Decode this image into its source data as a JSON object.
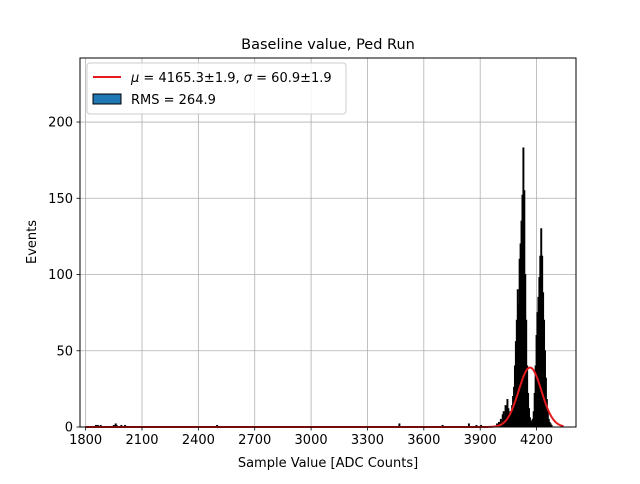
{
  "chart_data": {
    "type": "histogram",
    "title": "Baseline value, Ped Run",
    "xlabel": "Sample Value [ADC Counts]",
    "ylabel": "Events",
    "xlim": [
      1770,
      4410
    ],
    "ylim": [
      0,
      242
    ],
    "xticks": [
      1800,
      2100,
      2400,
      2700,
      3000,
      3300,
      3600,
      3900,
      4200
    ],
    "yticks": [
      0,
      50,
      100,
      150,
      200
    ],
    "grid": true,
    "legend_position": "top-left",
    "legend": [
      {
        "kind": "line",
        "math_mu": "μ",
        "mid": " = 4165.3±1.9, ",
        "math_sigma": "σ",
        "tail": " = 60.9±1.9"
      },
      {
        "kind": "patch",
        "label": "RMS = 264.9"
      }
    ],
    "fit": {
      "name": "gaussian fit",
      "mu": 4165.3,
      "sigma": 60.9,
      "amplitude": 39,
      "color": "#e41a1c",
      "x_range": [
        3995,
        4345
      ]
    },
    "histogram": {
      "color": "#1f77b4",
      "edgecolor": "#000000",
      "bins": [
        [
          1855,
          1
        ],
        [
          1865,
          1
        ],
        [
          1880,
          1
        ],
        [
          1950,
          1
        ],
        [
          1960,
          2
        ],
        [
          1965,
          1
        ],
        [
          1990,
          1
        ],
        [
          2010,
          1
        ],
        [
          2500,
          1
        ],
        [
          3470,
          2
        ],
        [
          3700,
          1
        ],
        [
          3840,
          2
        ],
        [
          3880,
          1
        ],
        [
          3905,
          1
        ],
        [
          3990,
          2
        ],
        [
          4000,
          3
        ],
        [
          4010,
          5
        ],
        [
          4020,
          8
        ],
        [
          4025,
          10
        ],
        [
          4030,
          6
        ],
        [
          4035,
          14
        ],
        [
          4040,
          9
        ],
        [
          4045,
          18
        ],
        [
          4050,
          12
        ],
        [
          4055,
          6
        ],
        [
          4060,
          10
        ],
        [
          4065,
          8
        ],
        [
          4070,
          14
        ],
        [
          4075,
          20
        ],
        [
          4080,
          26
        ],
        [
          4085,
          40
        ],
        [
          4090,
          56
        ],
        [
          4095,
          70
        ],
        [
          4100,
          90
        ],
        [
          4105,
          80
        ],
        [
          4110,
          110
        ],
        [
          4115,
          120
        ],
        [
          4120,
          135
        ],
        [
          4125,
          152
        ],
        [
          4130,
          183
        ],
        [
          4135,
          155
        ],
        [
          4140,
          100
        ],
        [
          4145,
          70
        ],
        [
          4150,
          40
        ],
        [
          4155,
          22
        ],
        [
          4160,
          12
        ],
        [
          4165,
          6
        ],
        [
          4170,
          4
        ],
        [
          4175,
          3
        ],
        [
          4180,
          5
        ],
        [
          4185,
          10
        ],
        [
          4190,
          22
        ],
        [
          4195,
          40
        ],
        [
          4200,
          60
        ],
        [
          4205,
          75
        ],
        [
          4210,
          85
        ],
        [
          4215,
          98
        ],
        [
          4220,
          112
        ],
        [
          4225,
          130
        ],
        [
          4230,
          112
        ],
        [
          4235,
          88
        ],
        [
          4240,
          70
        ],
        [
          4245,
          50
        ],
        [
          4250,
          32
        ],
        [
          4255,
          18
        ],
        [
          4260,
          10
        ],
        [
          4265,
          5
        ],
        [
          4270,
          3
        ],
        [
          4275,
          2
        ],
        [
          4280,
          1
        ]
      ]
    }
  }
}
